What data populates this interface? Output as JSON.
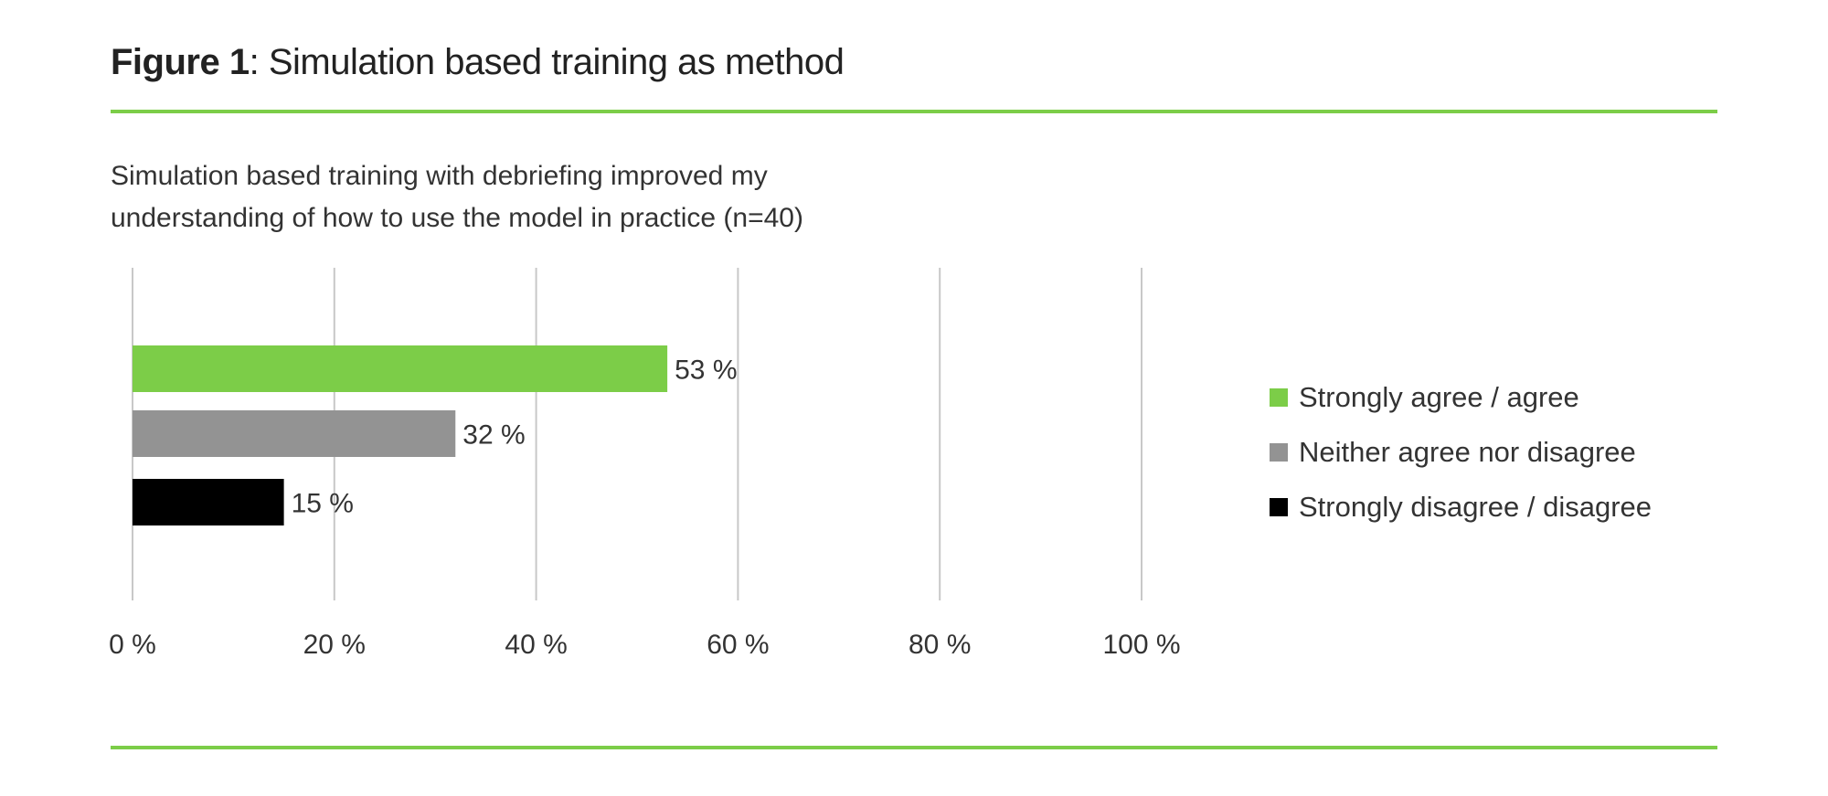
{
  "figure": {
    "label": "Figure 1",
    "title": ": Simulation based training as method"
  },
  "subtitle_lines": [
    "Simulation based training with debriefing improved my",
    "understanding of how to use the model in practice (n=40)"
  ],
  "chart_data": {
    "type": "bar",
    "orientation": "horizontal",
    "title": "Simulation based training with debriefing improved my understanding of how to use the model in practice (n=40)",
    "categories": [
      "Strongly agree / agree",
      "Neither agree nor disagree",
      "Strongly disagree / disagree"
    ],
    "values": [
      53,
      32,
      15
    ],
    "data_labels": [
      "53 %",
      "32 %",
      "15 %"
    ],
    "colors": [
      "#7ccd48",
      "#939393",
      "#000000"
    ],
    "xlim": [
      0,
      100
    ],
    "xticks": [
      0,
      20,
      40,
      60,
      80,
      100
    ],
    "xtick_labels": [
      "0 %",
      "20 %",
      "40 %",
      "60 %",
      "80 %",
      "100 %"
    ],
    "grid": true,
    "legend": "right"
  }
}
